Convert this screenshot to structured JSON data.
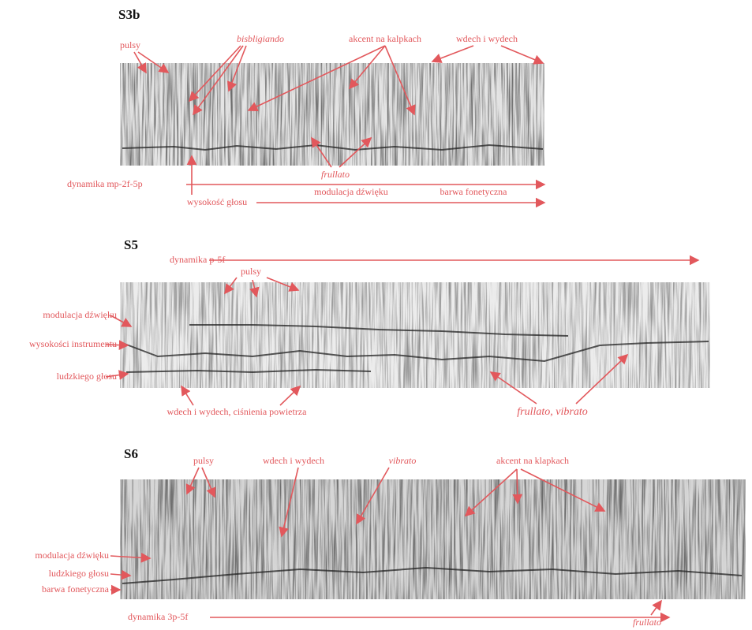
{
  "panels": [
    {
      "title": "S3b",
      "labels": [
        "pulsy",
        "bisbligiando",
        "akcent na kalpkach",
        "wdech i wydech",
        "frullato",
        "dynamika mp-2f-5p",
        "modulacja dźwięku",
        "barwa fonetyczna",
        "wysokość głosu"
      ]
    },
    {
      "title": "S5",
      "labels": [
        "dynamika p-5f",
        "pulsy",
        "modulacja dźwięku",
        "wysokości instrumentu",
        "ludzkiego głosu",
        "wdech i wydech, ciśnienia powietrza",
        "frullato, vibrato"
      ]
    },
    {
      "title": "S6",
      "labels": [
        "pulsy",
        "wdech i wydech",
        "vibrato",
        "akcent na klapkach",
        "modulacja dźwięku",
        "ludzkiego głosu",
        "barwa fonetyczna",
        "dynamika 3p-5f",
        "frullato"
      ]
    }
  ]
}
